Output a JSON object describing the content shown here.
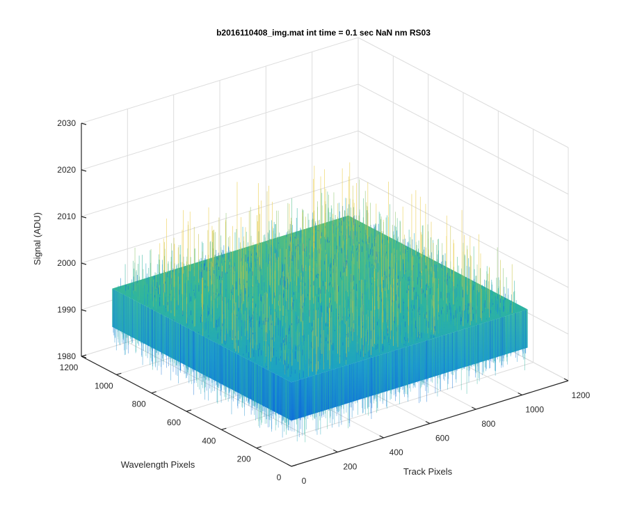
{
  "chart_data": {
    "type": "surface",
    "title": "b2016110408_img.mat int time = 0.1 sec  NaN nm RS03",
    "xlabel": "Track Pixels",
    "ylabel": "Wavelength Pixels",
    "zlabel": "Signal (ADU)",
    "xlim": [
      0,
      1200
    ],
    "ylim": [
      0,
      1200
    ],
    "zlim": [
      1980,
      2030
    ],
    "x_ticks": [
      "0",
      "200",
      "400",
      "600",
      "800",
      "1000",
      "1200"
    ],
    "y_ticks": [
      "0",
      "200",
      "400",
      "600",
      "800",
      "1000",
      "1200"
    ],
    "z_ticks": [
      "1980",
      "1990",
      "2000",
      "2010",
      "2020",
      "2030"
    ],
    "data_extent": {
      "x": [
        0,
        1024
      ],
      "y": [
        0,
        1024
      ]
    },
    "surface": {
      "mean": 1998,
      "noise_min": 1985,
      "noise_max": 2016
    },
    "colormap": "parula",
    "grid": true,
    "view": "3d-default"
  }
}
